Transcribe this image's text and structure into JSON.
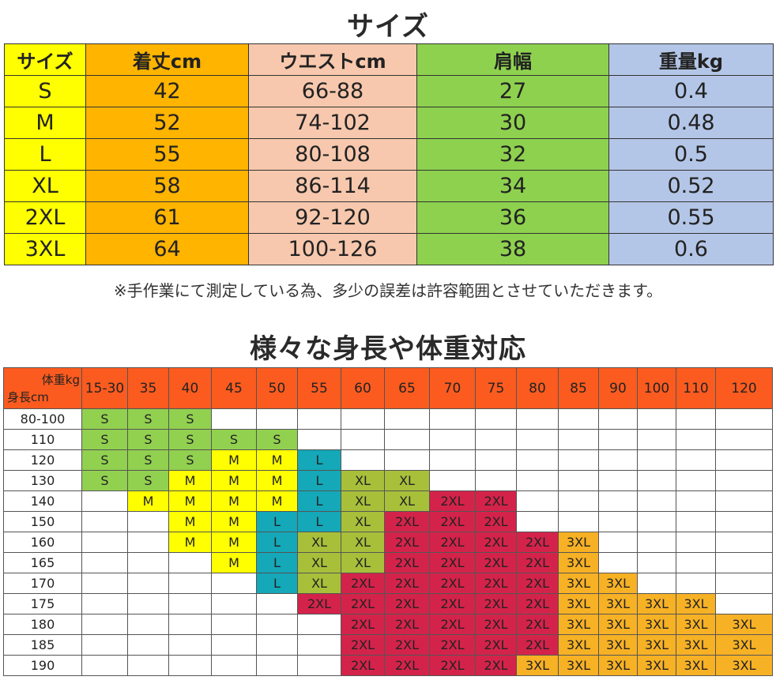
{
  "size_title": "サイズ",
  "size_table": {
    "headers": [
      "サイズ",
      "着丈cm",
      "ウエストcm",
      "肩幅",
      "重量kg"
    ],
    "rows": [
      [
        "S",
        "42",
        "66-88",
        "27",
        "0.4"
      ],
      [
        "M",
        "52",
        "74-102",
        "30",
        "0.48"
      ],
      [
        "L",
        "55",
        "80-108",
        "32",
        "0.5"
      ],
      [
        "XL",
        "58",
        "86-114",
        "34",
        "0.52"
      ],
      [
        "2XL",
        "61",
        "92-120",
        "36",
        "0.55"
      ],
      [
        "3XL",
        "64",
        "100-126",
        "38",
        "0.6"
      ]
    ],
    "column_colors": [
      "#ffff00",
      "#ffb400",
      "#f7c8ad",
      "#8ed14f",
      "#b4c6e7"
    ]
  },
  "note": "※手作業にて測定している為、多少の誤差は許容範囲とさせていただきます。",
  "chart_title": "様々な身長や体重対応",
  "chart": {
    "corner_weight": "体重kg",
    "corner_height": "身長cm",
    "weights": [
      "15-30",
      "35",
      "40",
      "45",
      "50",
      "55",
      "60",
      "65",
      "70",
      "75",
      "80",
      "85",
      "90",
      "100",
      "110",
      "120"
    ],
    "rows": [
      {
        "height": "80-100",
        "sizes": [
          "S",
          "S",
          "S",
          "",
          "",
          "",
          "",
          "",
          "",
          "",
          "",
          "",
          "",
          "",
          "",
          ""
        ]
      },
      {
        "height": "110",
        "sizes": [
          "S",
          "S",
          "S",
          "S",
          "S",
          "",
          "",
          "",
          "",
          "",
          "",
          "",
          "",
          "",
          "",
          ""
        ]
      },
      {
        "height": "120",
        "sizes": [
          "S",
          "S",
          "S",
          "M",
          "M",
          "L",
          "",
          "",
          "",
          "",
          "",
          "",
          "",
          "",
          "",
          ""
        ]
      },
      {
        "height": "130",
        "sizes": [
          "S",
          "S",
          "M",
          "M",
          "M",
          "L",
          "XL",
          "XL",
          "",
          "",
          "",
          "",
          "",
          "",
          "",
          ""
        ]
      },
      {
        "height": "140",
        "sizes": [
          "",
          "M",
          "M",
          "M",
          "M",
          "L",
          "XL",
          "XL",
          "2XL",
          "2XL",
          "",
          "",
          "",
          "",
          "",
          ""
        ]
      },
      {
        "height": "150",
        "sizes": [
          "",
          "",
          "M",
          "M",
          "L",
          "L",
          "XL",
          "2XL",
          "2XL",
          "2XL",
          "",
          "",
          "",
          "",
          "",
          ""
        ]
      },
      {
        "height": "160",
        "sizes": [
          "",
          "",
          "M",
          "M",
          "L",
          "XL",
          "XL",
          "2XL",
          "2XL",
          "2XL",
          "2XL",
          "3XL",
          "",
          "",
          "",
          ""
        ]
      },
      {
        "height": "165",
        "sizes": [
          "",
          "",
          "",
          "M",
          "L",
          "XL",
          "XL",
          "2XL",
          "2XL",
          "2XL",
          "2XL",
          "3XL",
          "",
          "",
          "",
          ""
        ]
      },
      {
        "height": "170",
        "sizes": [
          "",
          "",
          "",
          "",
          "L",
          "XL",
          "2XL",
          "2XL",
          "2XL",
          "2XL",
          "2XL",
          "3XL",
          "3XL",
          "",
          "",
          ""
        ]
      },
      {
        "height": "175",
        "sizes": [
          "",
          "",
          "",
          "",
          "",
          "2XL",
          "2XL",
          "2XL",
          "2XL",
          "2XL",
          "2XL",
          "3XL",
          "3XL",
          "3XL",
          "3XL",
          ""
        ]
      },
      {
        "height": "180",
        "sizes": [
          "",
          "",
          "",
          "",
          "",
          "",
          "2XL",
          "2XL",
          "2XL",
          "2XL",
          "2XL",
          "3XL",
          "3XL",
          "3XL",
          "3XL",
          "3XL"
        ]
      },
      {
        "height": "185",
        "sizes": [
          "",
          "",
          "",
          "",
          "",
          "",
          "2XL",
          "2XL",
          "2XL",
          "2XL",
          "2XL",
          "3XL",
          "3XL",
          "3XL",
          "3XL",
          "3XL"
        ]
      },
      {
        "height": "190",
        "sizes": [
          "",
          "",
          "",
          "",
          "",
          "",
          "2XL",
          "2XL",
          "2XL",
          "2XL",
          "3XL",
          "3XL",
          "3XL",
          "3XL",
          "3XL",
          "3XL"
        ]
      }
    ],
    "size_colors": {
      "S": "#92d050",
      "M": "#ffff00",
      "L": "#14a8b8",
      "XL": "#a8bf3a",
      "2XL": "#d4234a",
      "3XL": "#f7b125"
    },
    "header_color": "#fb5b1f"
  }
}
